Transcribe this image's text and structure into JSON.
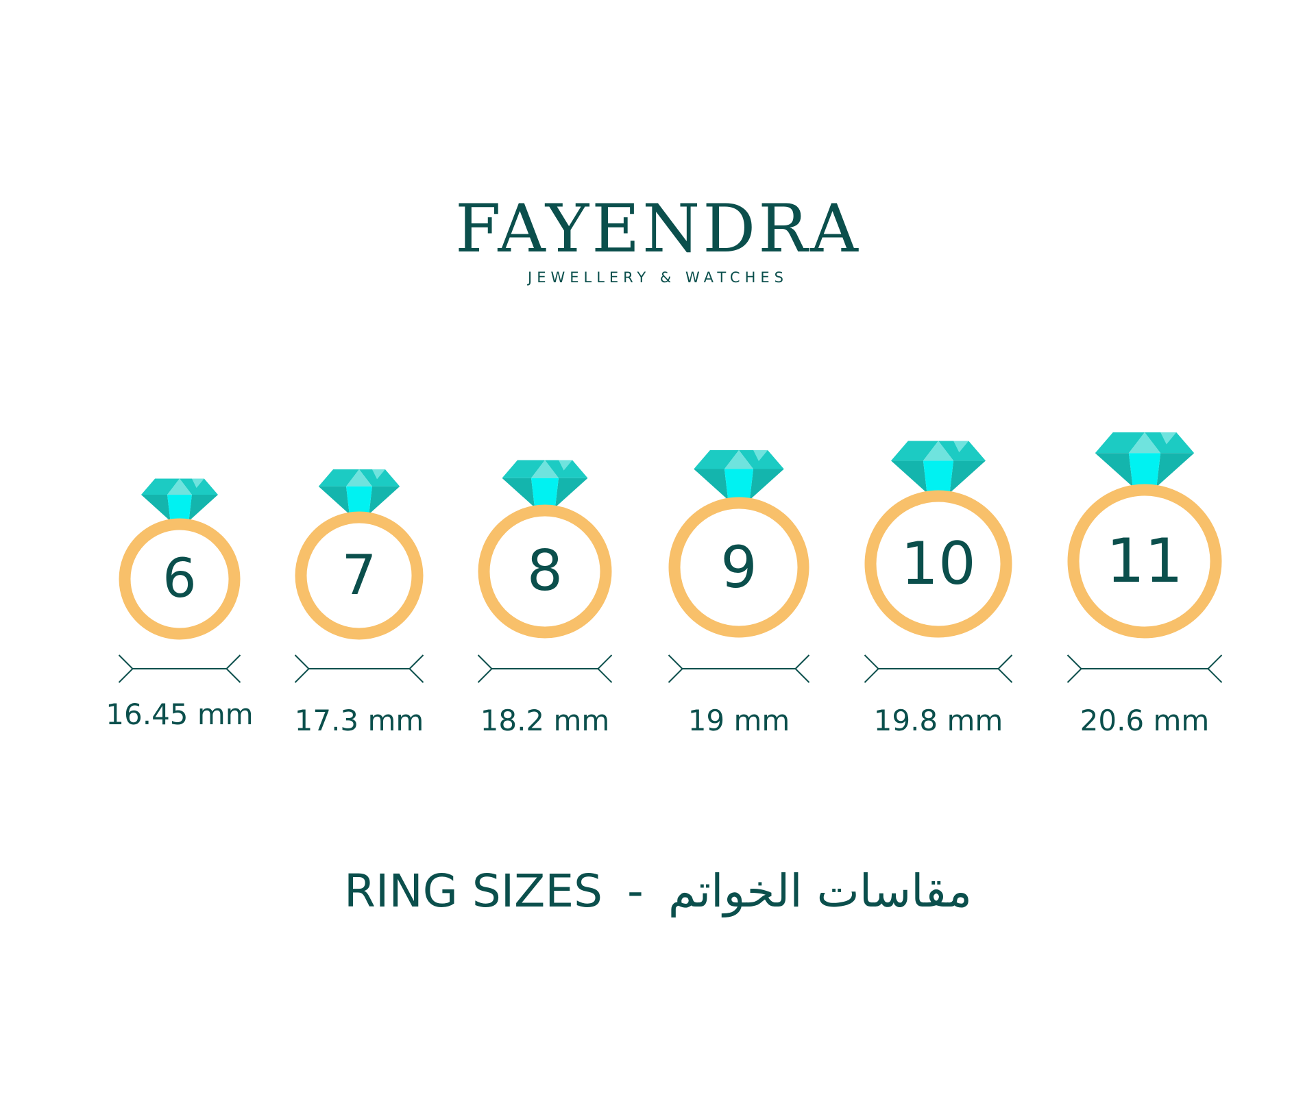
{
  "brand": {
    "name": "FAYENDRA",
    "tagline": "JEWELLERY & WATCHES"
  },
  "colors": {
    "text": "#0b4f4c",
    "ring_band": "#f8c06a",
    "gem_dark": "#14b5ad",
    "gem_mid": "#1ccbc3",
    "gem_light": "#6fe3de",
    "gem_bright": "#00f2f2"
  },
  "rings": [
    {
      "size": "6",
      "diameter": "16.45 mm",
      "icon": "diamond-ring-icon"
    },
    {
      "size": "7",
      "diameter": "17.3 mm",
      "icon": "diamond-ring-icon"
    },
    {
      "size": "8",
      "diameter": "18.2 mm",
      "icon": "diamond-ring-icon"
    },
    {
      "size": "9",
      "diameter": "19 mm",
      "icon": "diamond-ring-icon"
    },
    {
      "size": "10",
      "diameter": "19.8 mm",
      "icon": "diamond-ring-icon"
    },
    {
      "size": "11",
      "diameter": "20.6 mm",
      "icon": "diamond-ring-icon"
    }
  ],
  "title": {
    "english": "RING SIZES",
    "separator": "-",
    "arabic": "مقاسات الخواتم"
  }
}
